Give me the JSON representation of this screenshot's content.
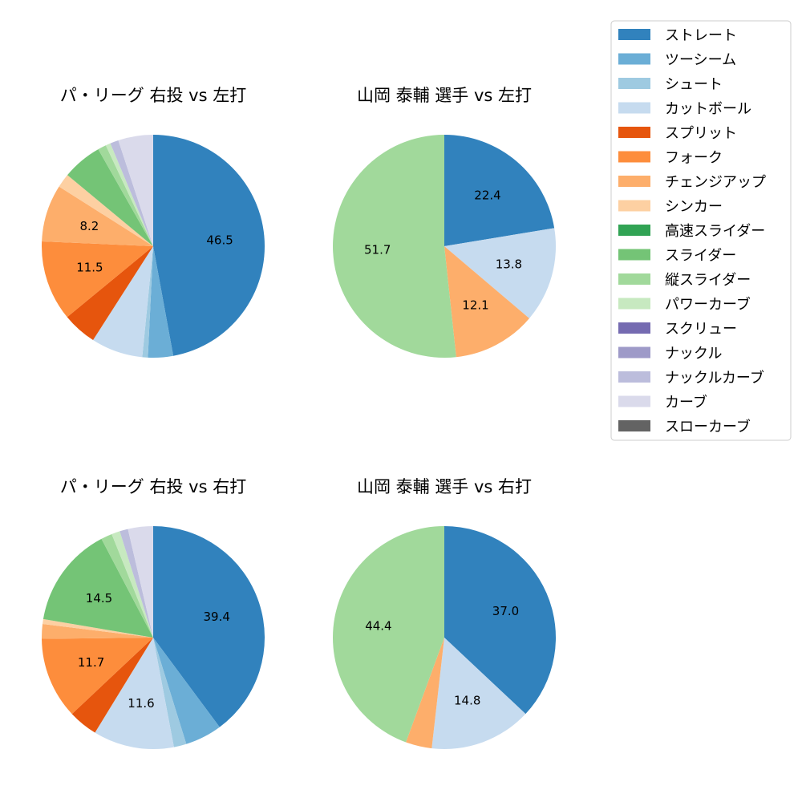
{
  "chart_data": {
    "type": "pie",
    "legend": {
      "placement": "top-right",
      "entries": [
        {
          "name": "ストレート",
          "color": "#3182bd"
        },
        {
          "name": "ツーシーム",
          "color": "#6baed6"
        },
        {
          "name": "シュート",
          "color": "#9ecae1"
        },
        {
          "name": "カットボール",
          "color": "#c6dbef"
        },
        {
          "name": "スプリット",
          "color": "#e6550d"
        },
        {
          "name": "フォーク",
          "color": "#fd8d3c"
        },
        {
          "name": "チェンジアップ",
          "color": "#fdae6b"
        },
        {
          "name": "シンカー",
          "color": "#fdd0a2"
        },
        {
          "name": "高速スライダー",
          "color": "#31a354"
        },
        {
          "name": "スライダー",
          "color": "#74c476"
        },
        {
          "name": "縦スライダー",
          "color": "#a1d99b"
        },
        {
          "name": "パワーカーブ",
          "color": "#c7e9c0"
        },
        {
          "name": "スクリュー",
          "color": "#756bb1"
        },
        {
          "name": "ナックル",
          "color": "#9e9ac8"
        },
        {
          "name": "ナックルカーブ",
          "color": "#bcbddc"
        },
        {
          "name": "カーブ",
          "color": "#dadaeb"
        },
        {
          "name": "スローカーブ",
          "color": "#636363"
        }
      ]
    },
    "pies": [
      {
        "title": "パ・リーグ 右投 vs 左打",
        "slices": [
          {
            "category": "ストレート",
            "value": 46.5,
            "label": "46.5"
          },
          {
            "category": "ツーシーム",
            "value": 3.6,
            "label": ""
          },
          {
            "category": "シュート",
            "value": 0.8,
            "label": ""
          },
          {
            "category": "カットボール",
            "value": 7.4,
            "label": ""
          },
          {
            "category": "スプリット",
            "value": 4.9,
            "label": ""
          },
          {
            "category": "フォーク",
            "value": 11.5,
            "label": "11.5"
          },
          {
            "category": "チェンジアップ",
            "value": 8.2,
            "label": "8.2"
          },
          {
            "category": "シンカー",
            "value": 2.0,
            "label": ""
          },
          {
            "category": "スライダー",
            "value": 5.7,
            "label": ""
          },
          {
            "category": "縦スライダー",
            "value": 1.2,
            "label": ""
          },
          {
            "category": "パワーカーブ",
            "value": 0.7,
            "label": ""
          },
          {
            "category": "ナックルカーブ",
            "value": 1.2,
            "label": ""
          },
          {
            "category": "カーブ",
            "value": 5.0,
            "label": ""
          }
        ]
      },
      {
        "title": "山岡 泰輔 選手 vs 左打",
        "slices": [
          {
            "category": "ストレート",
            "value": 22.4,
            "label": "22.4"
          },
          {
            "category": "カットボール",
            "value": 13.8,
            "label": "13.8"
          },
          {
            "category": "チェンジアップ",
            "value": 12.1,
            "label": "12.1"
          },
          {
            "category": "縦スライダー",
            "value": 51.7,
            "label": "51.7"
          }
        ]
      },
      {
        "title": "パ・リーグ 右投 vs 右打",
        "slices": [
          {
            "category": "ストレート",
            "value": 39.4,
            "label": "39.4"
          },
          {
            "category": "ツーシーム",
            "value": 5.3,
            "label": ""
          },
          {
            "category": "シュート",
            "value": 1.8,
            "label": ""
          },
          {
            "category": "カットボール",
            "value": 11.6,
            "label": "11.6"
          },
          {
            "category": "スプリット",
            "value": 4.2,
            "label": ""
          },
          {
            "category": "フォーク",
            "value": 11.7,
            "label": "11.7"
          },
          {
            "category": "チェンジアップ",
            "value": 2.1,
            "label": ""
          },
          {
            "category": "シンカー",
            "value": 0.7,
            "label": ""
          },
          {
            "category": "スライダー",
            "value": 14.5,
            "label": "14.5"
          },
          {
            "category": "縦スライダー",
            "value": 1.6,
            "label": ""
          },
          {
            "category": "パワーカーブ",
            "value": 1.2,
            "label": ""
          },
          {
            "category": "ナックルカーブ",
            "value": 1.2,
            "label": ""
          },
          {
            "category": "カーブ",
            "value": 3.6,
            "label": ""
          }
        ]
      },
      {
        "title": "山岡 泰輔 選手 vs 右打",
        "slices": [
          {
            "category": "ストレート",
            "value": 37.0,
            "label": "37.0"
          },
          {
            "category": "カットボール",
            "value": 14.8,
            "label": "14.8"
          },
          {
            "category": "チェンジアップ",
            "value": 3.8,
            "label": ""
          },
          {
            "category": "縦スライダー",
            "value": 44.4,
            "label": "44.4"
          }
        ]
      }
    ]
  }
}
